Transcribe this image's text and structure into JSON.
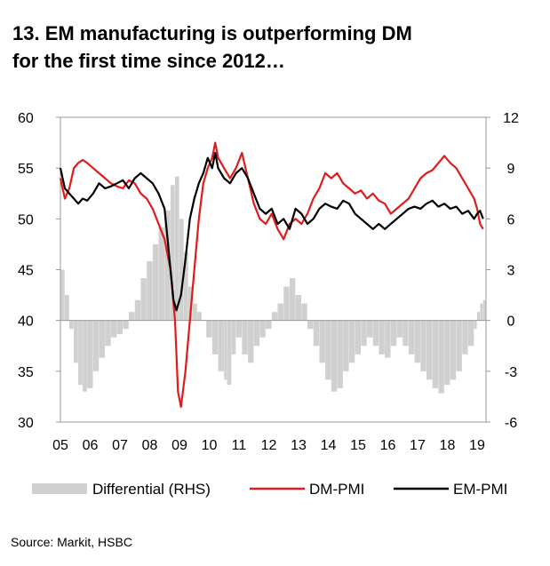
{
  "chart_data": {
    "type": "line+bar",
    "title_line1": "13. EM manufacturing is outperforming DM",
    "title_line2": "for the first time since 2012…",
    "x_range": [
      2005,
      2019.3
    ],
    "x_tick_labels": [
      {
        "label": "05",
        "x": 2005
      },
      {
        "label": "06",
        "x": 2006
      },
      {
        "label": "07",
        "x": 2007
      },
      {
        "label": "08",
        "x": 2008
      },
      {
        "label": "09",
        "x": 2009
      },
      {
        "label": "10",
        "x": 2010
      },
      {
        "label": "11",
        "x": 2011
      },
      {
        "label": "12",
        "x": 2012
      },
      {
        "label": "13",
        "x": 2013
      },
      {
        "label": "14",
        "x": 2014
      },
      {
        "label": "15",
        "x": 2015
      },
      {
        "label": "16",
        "x": 2016
      },
      {
        "label": "17",
        "x": 2017
      },
      {
        "label": "18",
        "x": 2018
      },
      {
        "label": "19",
        "x": 2019
      }
    ],
    "y_left": {
      "min": 30,
      "max": 60,
      "ticks": [
        30,
        35,
        40,
        45,
        50,
        55,
        60
      ]
    },
    "y_right": {
      "min": -6,
      "max": 12,
      "ticks": [
        -6,
        -3,
        0,
        3,
        6,
        9,
        12
      ]
    },
    "series": [
      {
        "name": "Differential (RHS)",
        "kind": "bar",
        "axis": "right",
        "color": "#d0d0d0",
        "points": [
          [
            2005.0,
            3.0
          ],
          [
            2005.15,
            1.5
          ],
          [
            2005.3,
            -0.5
          ],
          [
            2005.45,
            -2.5
          ],
          [
            2005.6,
            -3.8
          ],
          [
            2005.75,
            -4.2
          ],
          [
            2005.9,
            -4.0
          ],
          [
            2006.1,
            -3.0
          ],
          [
            2006.3,
            -2.2
          ],
          [
            2006.5,
            -1.5
          ],
          [
            2006.7,
            -1.0
          ],
          [
            2006.9,
            -0.8
          ],
          [
            2007.1,
            -0.5
          ],
          [
            2007.3,
            0.5
          ],
          [
            2007.5,
            1.2
          ],
          [
            2007.7,
            2.5
          ],
          [
            2007.9,
            3.5
          ],
          [
            2008.1,
            4.5
          ],
          [
            2008.3,
            5.5
          ],
          [
            2008.5,
            6.5
          ],
          [
            2008.7,
            8.0
          ],
          [
            2008.85,
            8.5
          ],
          [
            2009.0,
            6.0
          ],
          [
            2009.15,
            4.0
          ],
          [
            2009.3,
            2.0
          ],
          [
            2009.45,
            1.0
          ],
          [
            2009.6,
            0.5
          ],
          [
            2009.75,
            0.0
          ],
          [
            2009.9,
            -1.0
          ],
          [
            2010.1,
            -2.0
          ],
          [
            2010.3,
            -3.0
          ],
          [
            2010.5,
            -3.5
          ],
          [
            2010.6,
            -3.8
          ],
          [
            2010.75,
            -2.0
          ],
          [
            2010.9,
            -1.0
          ],
          [
            2011.1,
            -2.0
          ],
          [
            2011.3,
            -2.5
          ],
          [
            2011.5,
            -1.5
          ],
          [
            2011.7,
            -1.0
          ],
          [
            2011.9,
            -0.5
          ],
          [
            2012.1,
            0.5
          ],
          [
            2012.3,
            1.0
          ],
          [
            2012.5,
            2.0
          ],
          [
            2012.7,
            2.5
          ],
          [
            2012.9,
            1.5
          ],
          [
            2013.1,
            1.0
          ],
          [
            2013.3,
            -0.5
          ],
          [
            2013.5,
            -1.5
          ],
          [
            2013.7,
            -2.5
          ],
          [
            2013.9,
            -3.5
          ],
          [
            2014.1,
            -4.2
          ],
          [
            2014.3,
            -4.0
          ],
          [
            2014.5,
            -3.0
          ],
          [
            2014.7,
            -2.5
          ],
          [
            2014.9,
            -2.0
          ],
          [
            2015.1,
            -1.5
          ],
          [
            2015.3,
            -1.0
          ],
          [
            2015.5,
            -1.5
          ],
          [
            2015.7,
            -2.0
          ],
          [
            2015.9,
            -2.2
          ],
          [
            2016.1,
            -1.5
          ],
          [
            2016.3,
            -1.0
          ],
          [
            2016.5,
            -1.5
          ],
          [
            2016.7,
            -2.0
          ],
          [
            2016.9,
            -2.5
          ],
          [
            2017.1,
            -3.0
          ],
          [
            2017.3,
            -3.5
          ],
          [
            2017.5,
            -4.0
          ],
          [
            2017.7,
            -4.3
          ],
          [
            2017.9,
            -3.8
          ],
          [
            2018.1,
            -3.5
          ],
          [
            2018.3,
            -3.0
          ],
          [
            2018.5,
            -2.0
          ],
          [
            2018.7,
            -1.5
          ],
          [
            2018.9,
            -0.5
          ],
          [
            2019.0,
            0.5
          ],
          [
            2019.1,
            1.0
          ],
          [
            2019.2,
            1.2
          ]
        ]
      },
      {
        "name": "DM-PMI",
        "kind": "line",
        "axis": "left",
        "color": "#e01b1b",
        "points": [
          [
            2005.0,
            54
          ],
          [
            2005.15,
            52
          ],
          [
            2005.3,
            53
          ],
          [
            2005.45,
            55
          ],
          [
            2005.6,
            55.5
          ],
          [
            2005.75,
            55.8
          ],
          [
            2005.9,
            55.5
          ],
          [
            2006.1,
            55.0
          ],
          [
            2006.3,
            54.5
          ],
          [
            2006.5,
            54.0
          ],
          [
            2006.7,
            53.5
          ],
          [
            2006.9,
            53.2
          ],
          [
            2007.1,
            53.0
          ],
          [
            2007.3,
            53.8
          ],
          [
            2007.5,
            53.5
          ],
          [
            2007.7,
            52.5
          ],
          [
            2007.9,
            52.0
          ],
          [
            2008.1,
            51.0
          ],
          [
            2008.3,
            49.5
          ],
          [
            2008.5,
            48.0
          ],
          [
            2008.7,
            45.0
          ],
          [
            2008.85,
            40.0
          ],
          [
            2008.95,
            33.0
          ],
          [
            2009.05,
            31.5
          ],
          [
            2009.2,
            35.0
          ],
          [
            2009.35,
            40.0
          ],
          [
            2009.5,
            45.0
          ],
          [
            2009.65,
            50.0
          ],
          [
            2009.8,
            53.5
          ],
          [
            2009.95,
            55.0
          ],
          [
            2010.1,
            56.0
          ],
          [
            2010.2,
            57.5
          ],
          [
            2010.3,
            56.0
          ],
          [
            2010.5,
            55.0
          ],
          [
            2010.7,
            54.0
          ],
          [
            2010.9,
            55.0
          ],
          [
            2011.1,
            56.5
          ],
          [
            2011.3,
            54.0
          ],
          [
            2011.5,
            51.5
          ],
          [
            2011.7,
            50.0
          ],
          [
            2011.9,
            49.5
          ],
          [
            2012.1,
            50.5
          ],
          [
            2012.3,
            49.0
          ],
          [
            2012.5,
            48.0
          ],
          [
            2012.7,
            49.5
          ],
          [
            2012.9,
            50.0
          ],
          [
            2013.1,
            49.5
          ],
          [
            2013.3,
            50.5
          ],
          [
            2013.5,
            52.0
          ],
          [
            2013.7,
            53.0
          ],
          [
            2013.9,
            54.5
          ],
          [
            2014.1,
            54.0
          ],
          [
            2014.3,
            54.5
          ],
          [
            2014.5,
            53.5
          ],
          [
            2014.7,
            53.0
          ],
          [
            2014.9,
            52.5
          ],
          [
            2015.1,
            52.8
          ],
          [
            2015.3,
            52.0
          ],
          [
            2015.5,
            52.5
          ],
          [
            2015.7,
            51.8
          ],
          [
            2015.9,
            51.5
          ],
          [
            2016.1,
            50.5
          ],
          [
            2016.3,
            51.0
          ],
          [
            2016.5,
            51.5
          ],
          [
            2016.7,
            52.0
          ],
          [
            2016.9,
            53.0
          ],
          [
            2017.1,
            54.0
          ],
          [
            2017.3,
            54.5
          ],
          [
            2017.5,
            54.8
          ],
          [
            2017.7,
            55.5
          ],
          [
            2017.9,
            56.2
          ],
          [
            2018.1,
            55.5
          ],
          [
            2018.3,
            55.0
          ],
          [
            2018.5,
            54.0
          ],
          [
            2018.7,
            53.0
          ],
          [
            2018.9,
            52.0
          ],
          [
            2019.0,
            51.0
          ],
          [
            2019.1,
            49.5
          ],
          [
            2019.2,
            49.0
          ]
        ]
      },
      {
        "name": "EM-PMI",
        "kind": "line",
        "axis": "left",
        "color": "#000000",
        "points": [
          [
            2005.0,
            55
          ],
          [
            2005.15,
            53
          ],
          [
            2005.3,
            52.5
          ],
          [
            2005.45,
            52.0
          ],
          [
            2005.6,
            51.5
          ],
          [
            2005.75,
            52.0
          ],
          [
            2005.9,
            51.8
          ],
          [
            2006.1,
            52.5
          ],
          [
            2006.3,
            53.5
          ],
          [
            2006.5,
            53.0
          ],
          [
            2006.7,
            53.2
          ],
          [
            2006.9,
            53.5
          ],
          [
            2007.1,
            53.8
          ],
          [
            2007.3,
            53.0
          ],
          [
            2007.5,
            54.0
          ],
          [
            2007.7,
            54.5
          ],
          [
            2007.9,
            54.0
          ],
          [
            2008.1,
            53.5
          ],
          [
            2008.3,
            52.5
          ],
          [
            2008.5,
            51.0
          ],
          [
            2008.6,
            48.0
          ],
          [
            2008.7,
            45.0
          ],
          [
            2008.8,
            42.0
          ],
          [
            2008.9,
            41.0
          ],
          [
            2009.05,
            42.5
          ],
          [
            2009.2,
            46.0
          ],
          [
            2009.35,
            50.0
          ],
          [
            2009.5,
            52.0
          ],
          [
            2009.65,
            53.5
          ],
          [
            2009.8,
            54.5
          ],
          [
            2009.95,
            56.0
          ],
          [
            2010.1,
            55.0
          ],
          [
            2010.2,
            56.5
          ],
          [
            2010.3,
            55.0
          ],
          [
            2010.5,
            54.0
          ],
          [
            2010.7,
            53.5
          ],
          [
            2010.9,
            54.5
          ],
          [
            2011.1,
            55.0
          ],
          [
            2011.3,
            54.0
          ],
          [
            2011.5,
            52.5
          ],
          [
            2011.7,
            51.0
          ],
          [
            2011.9,
            50.5
          ],
          [
            2012.1,
            51.0
          ],
          [
            2012.3,
            49.5
          ],
          [
            2012.5,
            50.0
          ],
          [
            2012.7,
            49.0
          ],
          [
            2012.9,
            51.0
          ],
          [
            2013.1,
            50.5
          ],
          [
            2013.3,
            49.5
          ],
          [
            2013.5,
            50.0
          ],
          [
            2013.7,
            51.0
          ],
          [
            2013.9,
            51.5
          ],
          [
            2014.1,
            51.2
          ],
          [
            2014.3,
            51.0
          ],
          [
            2014.5,
            51.8
          ],
          [
            2014.7,
            51.5
          ],
          [
            2014.9,
            50.5
          ],
          [
            2015.1,
            50.0
          ],
          [
            2015.3,
            49.5
          ],
          [
            2015.5,
            49.0
          ],
          [
            2015.7,
            49.5
          ],
          [
            2015.9,
            49.0
          ],
          [
            2016.1,
            49.5
          ],
          [
            2016.3,
            50.0
          ],
          [
            2016.5,
            50.5
          ],
          [
            2016.7,
            51.0
          ],
          [
            2016.9,
            51.2
          ],
          [
            2017.1,
            51.0
          ],
          [
            2017.3,
            51.5
          ],
          [
            2017.5,
            51.8
          ],
          [
            2017.7,
            51.2
          ],
          [
            2017.9,
            51.5
          ],
          [
            2018.1,
            51.0
          ],
          [
            2018.3,
            51.2
          ],
          [
            2018.5,
            50.5
          ],
          [
            2018.7,
            50.8
          ],
          [
            2018.9,
            50.0
          ],
          [
            2019.0,
            50.5
          ],
          [
            2019.1,
            50.8
          ],
          [
            2019.2,
            50.0
          ]
        ]
      }
    ],
    "legend": [
      {
        "label": "Differential (RHS)",
        "kind": "bar",
        "color": "#d0d0d0"
      },
      {
        "label": "DM-PMI",
        "kind": "line",
        "color": "#e01b1b"
      },
      {
        "label": "EM-PMI",
        "kind": "line",
        "color": "#000000"
      }
    ],
    "source": "Source: Markit, HSBC"
  }
}
